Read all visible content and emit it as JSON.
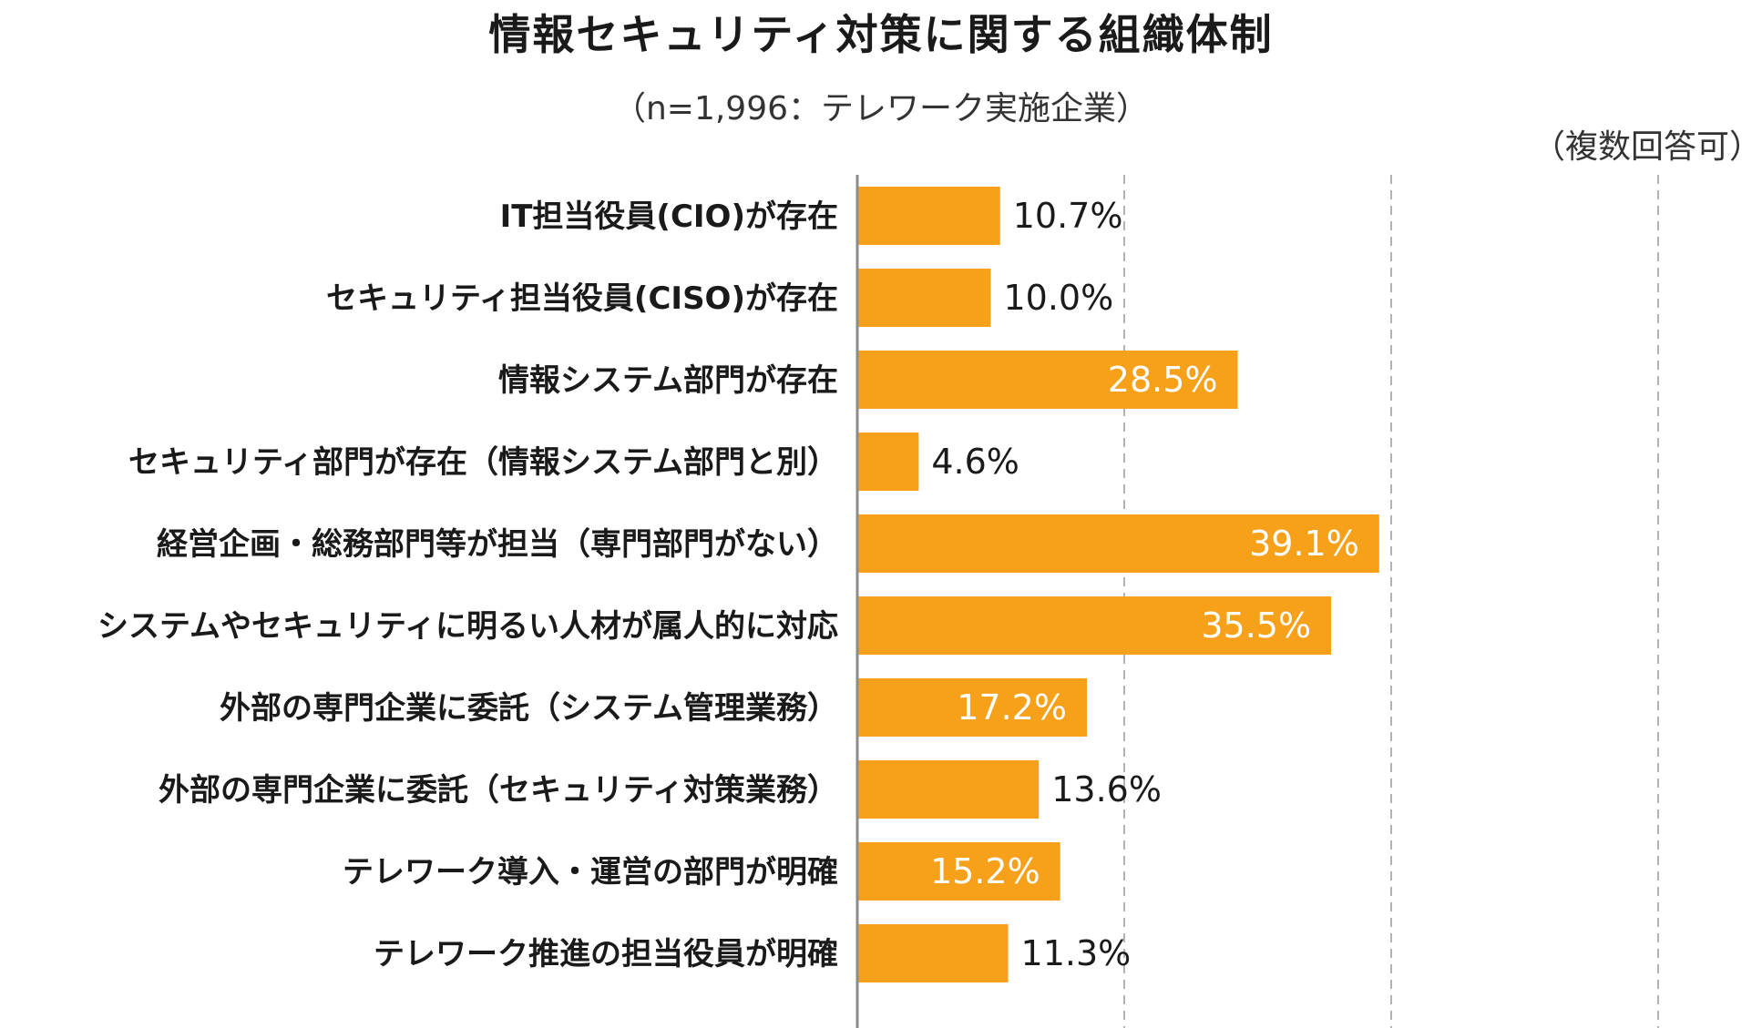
{
  "chart_data": {
    "type": "bar",
    "orientation": "horizontal",
    "title": "情報セキュリティ対策に関する組織体制",
    "subtitle": "（n=1,996：テレワーク実施企業）",
    "note": "（複数回答可）",
    "categories": [
      "IT担当役員(CIO)が存在",
      "セキュリティ担当役員(CISO)が存在",
      "情報システム部門が存在",
      "セキュリティ部門が存在（情報システム部門と別）",
      "経営企画・総務部門等が担当（専門部門がない）",
      "システムやセキュリティに明るい人材が属人的に対応",
      "外部の専門企業に委託（システム管理業務）",
      "外部の専門企業に委託（セキュリティ対策業務）",
      "テレワーク導入・運営の部門が明確",
      "テレワーク推進の担当役員が明確"
    ],
    "values": [
      10.7,
      10.0,
      28.5,
      4.6,
      39.1,
      35.5,
      17.2,
      13.6,
      15.2,
      11.3
    ],
    "value_labels": [
      "10.7%",
      "10.0%",
      "28.5%",
      "4.6%",
      "39.1%",
      "35.5%",
      "17.2%",
      "13.6%",
      "15.2%",
      "11.3%"
    ],
    "xlim": [
      0,
      60
    ],
    "gridlines": [
      20,
      40,
      60
    ],
    "grid": "dashed vertical",
    "bar_color": "#F7A01A",
    "label_inside_color": "#ffffff",
    "label_outside_color": "#1a1a1a"
  }
}
